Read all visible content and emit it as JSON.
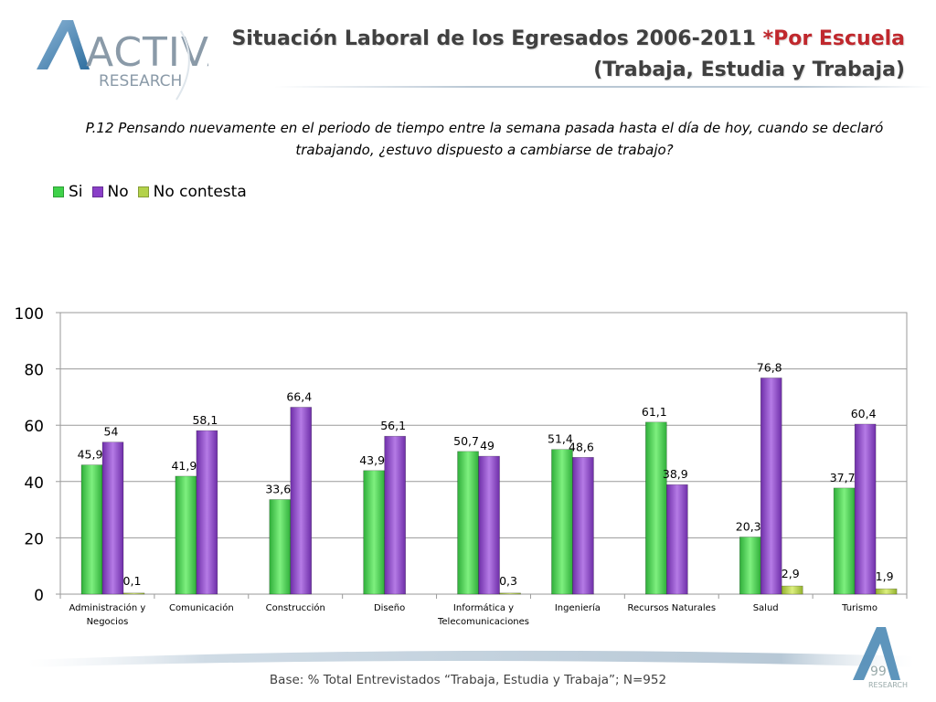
{
  "logo": {
    "brand": "ACTIVA",
    "subtitle": "RESEARCH"
  },
  "header": {
    "title_line1": "Situación Laboral de los Egresados 2006-2011 ",
    "title_accent": "*Por Escuela",
    "title_line2": "(Trabaja, Estudia y Trabaja)"
  },
  "question": {
    "line1": "P.12 Pensando nuevamente en el periodo de tiempo entre la semana pasada hasta el día de hoy, cuando se declaró",
    "line2": "trabajando, ¿estuvo dispuesto a cambiarse de trabajo?"
  },
  "colors": {
    "si": "#3fd24a",
    "no": "#8a3fc8",
    "no_contesta": "#b3d24a",
    "accent": "#c0282d"
  },
  "chart_data": {
    "type": "bar",
    "title": "",
    "xlabel": "",
    "ylabel": "",
    "ylim": [
      0,
      100
    ],
    "yticks": [
      0,
      20,
      40,
      60,
      80,
      100
    ],
    "grid": true,
    "legend_position": "top-left",
    "categories": [
      [
        "Administración y",
        "Negocios"
      ],
      [
        "Comunicación"
      ],
      [
        "Construcción"
      ],
      [
        "Diseño"
      ],
      [
        "Informática y",
        "Telecomunicaciones"
      ],
      [
        "Ingeniería"
      ],
      [
        "Recursos Naturales"
      ],
      [
        "Salud"
      ],
      [
        "Turismo"
      ]
    ],
    "series": [
      {
        "name": "Si",
        "values": [
          45.9,
          41.9,
          33.6,
          43.9,
          50.7,
          51.4,
          61.1,
          20.3,
          37.7
        ],
        "labels": [
          "45,9",
          "41,9",
          "33,6",
          "43,9",
          "50,7",
          "51,4",
          "61,1",
          "20,3",
          "37,7"
        ]
      },
      {
        "name": "No",
        "values": [
          54,
          58.1,
          66.4,
          56.1,
          49,
          48.6,
          38.9,
          76.8,
          60.4
        ],
        "labels": [
          "54",
          "58,1",
          "66,4",
          "56,1",
          "49",
          "48,6",
          "38,9",
          "76,8",
          "60,4"
        ]
      },
      {
        "name": "No contesta",
        "values": [
          0.1,
          null,
          null,
          null,
          0.3,
          null,
          null,
          2.9,
          1.9
        ],
        "labels": [
          "0,1",
          null,
          null,
          null,
          "0,3",
          null,
          null,
          "2,9",
          "1,9"
        ]
      }
    ]
  },
  "footer": {
    "base_note": "Base: % Total Entrevistados “Trabaja, Estudia y Trabaja”; N=952",
    "page_number": "99",
    "mini_logo_text": "RESEARCH"
  }
}
